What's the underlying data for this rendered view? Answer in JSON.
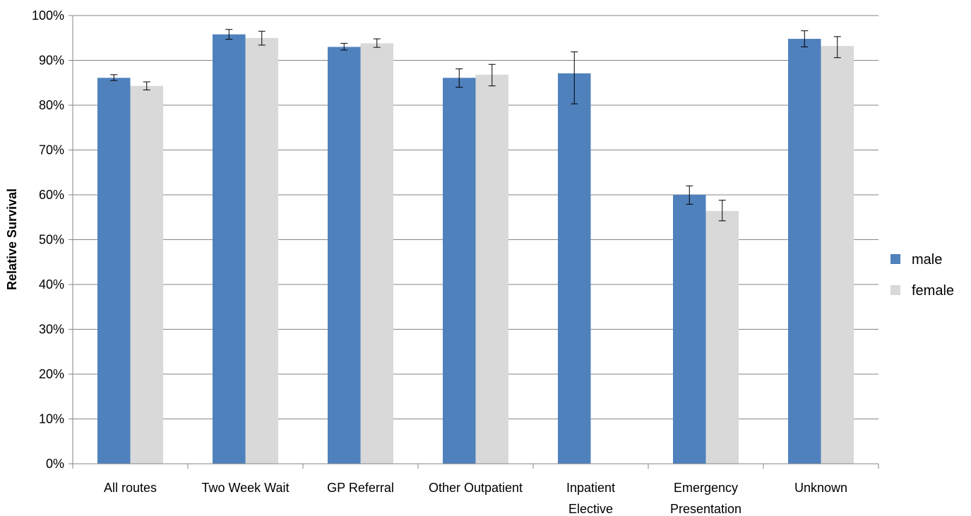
{
  "chart_data": {
    "type": "bar",
    "ylabel": "Relative Survival",
    "ylim": [
      0,
      100
    ],
    "yticks": [
      "0%",
      "10%",
      "20%",
      "30%",
      "40%",
      "50%",
      "60%",
      "70%",
      "80%",
      "90%",
      "100%"
    ],
    "categories": [
      [
        "All routes"
      ],
      [
        "Two Week Wait"
      ],
      [
        "GP Referral"
      ],
      [
        "Other Outpatient"
      ],
      [
        "Inpatient",
        "Elective"
      ],
      [
        "Emergency",
        "Presentation"
      ],
      [
        "Unknown"
      ]
    ],
    "series": [
      {
        "name": "male",
        "color": "#4f81bd",
        "values": [
          86.1,
          95.8,
          93.0,
          86.1,
          87.1,
          60.0,
          94.8
        ],
        "err_low": [
          85.5,
          94.7,
          92.3,
          84.0,
          80.3,
          57.9,
          93.0
        ],
        "err_high": [
          86.8,
          96.9,
          93.8,
          88.1,
          91.9,
          62.0,
          96.6
        ]
      },
      {
        "name": "female",
        "color": "#d9d9d9",
        "values": [
          84.3,
          95.0,
          93.8,
          86.8,
          null,
          56.4,
          93.2
        ],
        "err_low": [
          83.4,
          93.4,
          92.9,
          84.3,
          null,
          54.2,
          90.6
        ],
        "err_high": [
          85.2,
          96.5,
          94.8,
          89.1,
          null,
          58.8,
          95.3
        ]
      }
    ],
    "grid": true,
    "legend_position": "right"
  }
}
